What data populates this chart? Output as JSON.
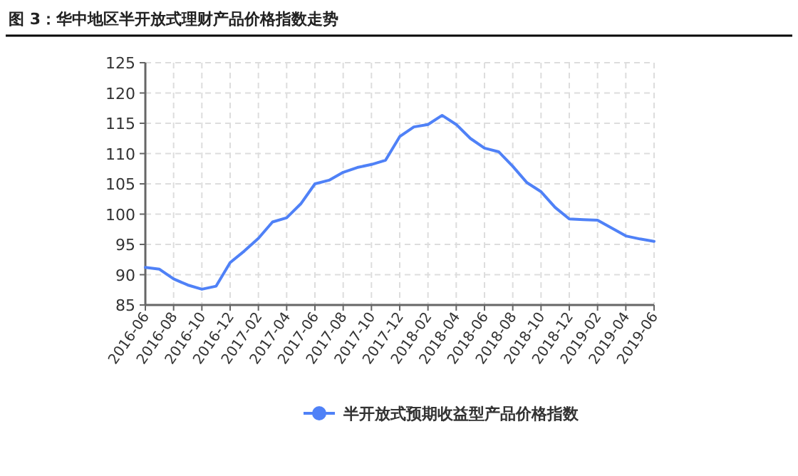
{
  "chart_data": {
    "type": "line",
    "title": "图 3：华中地区半开放式理财产品价格指数走势",
    "x": [
      "2016-06",
      "2016-07",
      "2016-08",
      "2016-09",
      "2016-10",
      "2016-11",
      "2016-12",
      "2017-01",
      "2017-02",
      "2017-03",
      "2017-04",
      "2017-05",
      "2017-06",
      "2017-07",
      "2017-08",
      "2017-09",
      "2017-10",
      "2017-11",
      "2017-12",
      "2018-01",
      "2018-02",
      "2018-03",
      "2018-04",
      "2018-05",
      "2018-06",
      "2018-07",
      "2018-08",
      "2018-09",
      "2018-10",
      "2018-11",
      "2018-12",
      "2019-01",
      "2019-02",
      "2019-03",
      "2019-04",
      "2019-05",
      "2019-06"
    ],
    "series": [
      {
        "name": "半开放式预期收益型产品价格指数",
        "color": "#4f81f7",
        "values": [
          91.2,
          90.9,
          89.3,
          88.3,
          87.6,
          88.1,
          92.0,
          93.9,
          96.0,
          98.7,
          99.4,
          101.7,
          105.0,
          105.6,
          106.9,
          107.7,
          108.2,
          108.9,
          112.8,
          114.4,
          114.8,
          116.3,
          114.8,
          112.5,
          110.9,
          110.3,
          107.9,
          105.2,
          103.7,
          101.1,
          99.2,
          99.1,
          99.0,
          97.7,
          96.4,
          95.9,
          95.5
        ]
      }
    ],
    "xlim": [
      "2016-06",
      "2019-06"
    ],
    "xticks": [
      "2016-06",
      "2016-08",
      "2016-10",
      "2016-12",
      "2017-02",
      "2017-04",
      "2017-06",
      "2017-08",
      "2017-10",
      "2017-12",
      "2018-02",
      "2018-04",
      "2018-06",
      "2018-08",
      "2018-10",
      "2018-12",
      "2019-02",
      "2019-04",
      "2019-06"
    ],
    "ylim": [
      85,
      125
    ],
    "yticks": [
      85,
      90,
      95,
      100,
      105,
      110,
      115,
      120,
      125
    ],
    "grid": true,
    "legend": "bottom",
    "line_style": "solid"
  }
}
